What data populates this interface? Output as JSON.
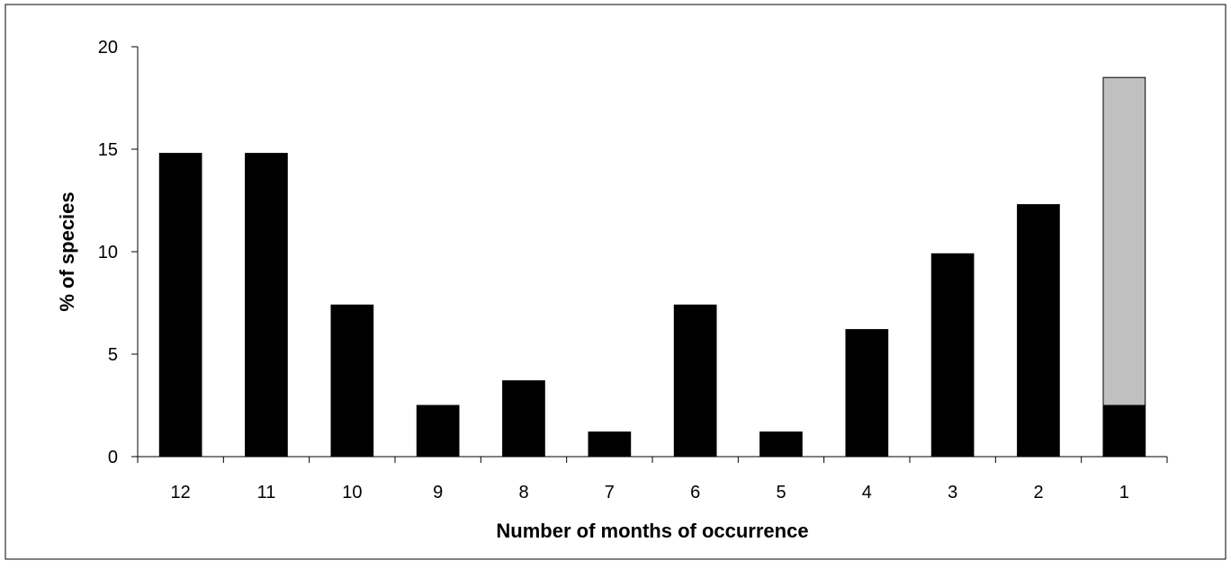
{
  "chart_data": {
    "type": "bar",
    "stacked": true,
    "xlabel": "Number of months of occurrence",
    "ylabel": "% of species",
    "categories": [
      "12",
      "11",
      "10",
      "9",
      "8",
      "7",
      "6",
      "5",
      "4",
      "3",
      "2",
      "1"
    ],
    "series": [
      {
        "color": "#000000",
        "values": [
          14.8,
          14.8,
          7.4,
          2.5,
          3.7,
          1.2,
          7.4,
          1.2,
          6.2,
          9.9,
          12.3,
          2.5
        ]
      },
      {
        "color": "#c0c0c0",
        "values": [
          0,
          0,
          0,
          0,
          0,
          0,
          0,
          0,
          0,
          0,
          0,
          16.0
        ]
      }
    ],
    "ylim": [
      0,
      20
    ],
    "yticks": [
      0,
      5,
      10,
      15,
      20
    ],
    "grid": false,
    "legend": "none",
    "frame_border": true
  }
}
